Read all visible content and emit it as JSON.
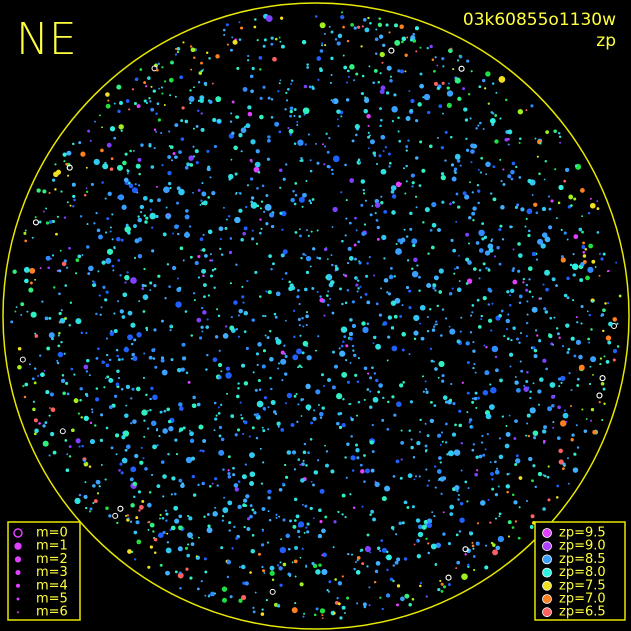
{
  "corner_label": "NE",
  "header": {
    "title": "03k60855o1130w",
    "subtitle": "zp"
  },
  "magnitude_legend": [
    {
      "label": "m=0",
      "hollow": true
    },
    {
      "label": "m=1"
    },
    {
      "label": "m=2"
    },
    {
      "label": "m=3"
    },
    {
      "label": "m=4"
    },
    {
      "label": "m=5"
    },
    {
      "label": "m=6"
    }
  ],
  "zp_legend": [
    {
      "label": "zp=9.5",
      "color": "#e040ff"
    },
    {
      "label": "zp=9.0",
      "color": "#b040ff"
    },
    {
      "label": "zp=8.5",
      "color": "#3aa0ff"
    },
    {
      "label": "zp=8.0",
      "color": "#30f0e0"
    },
    {
      "label": "zp=7.5",
      "color": "#f0e020"
    },
    {
      "label": "zp=7.0",
      "color": "#ff8020"
    },
    {
      "label": "zp=6.5",
      "color": "#ff6060"
    }
  ]
}
